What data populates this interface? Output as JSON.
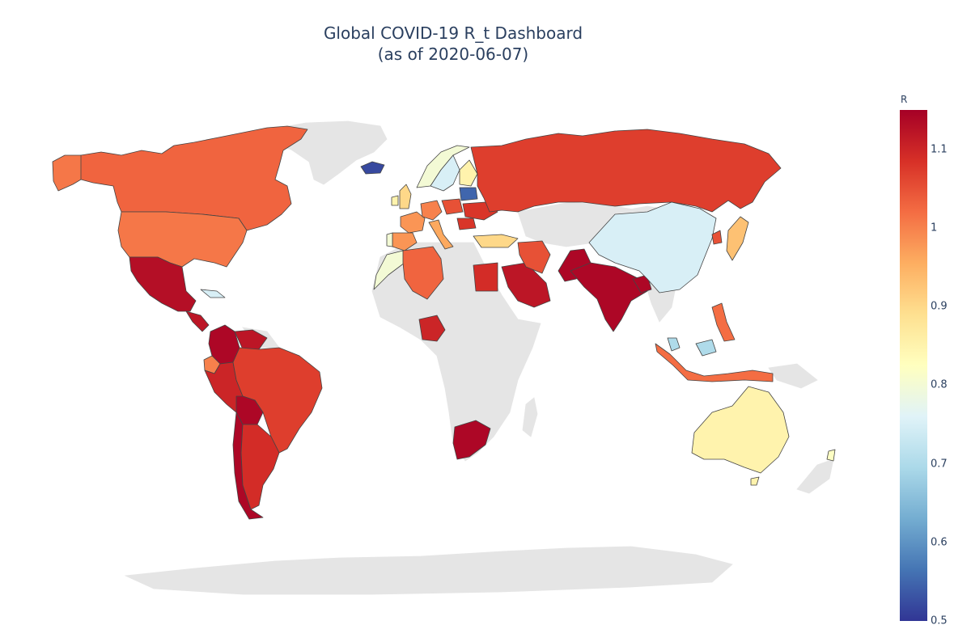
{
  "title": {
    "line1": "Global COVID-19 R_t Dashboard",
    "line2": "(as of 2020-06-07)"
  },
  "colorbar": {
    "title": "R",
    "min": 0.5,
    "max": 1.15,
    "colorscale": [
      "#313695",
      "#4575b4",
      "#74add1",
      "#abd9e9",
      "#e0f3f8",
      "#ffffbf",
      "#fee090",
      "#fdae61",
      "#f46d43",
      "#d73027",
      "#a50026"
    ],
    "ticks": [
      "1.1",
      "1",
      "0.9",
      "0.8",
      "0.7",
      "0.6",
      "0.5"
    ]
  },
  "map": {
    "no_data_color": "#e5e5e5",
    "border_color": "#444444"
  },
  "chart_data": {
    "type": "choropleth",
    "title": "Global COVID-19 R_t Dashboard (as of 2020-06-07)",
    "colorbar_title": "R",
    "range": [
      0.5,
      1.15
    ],
    "regions": [
      {
        "name": "Canada",
        "value": 1.03
      },
      {
        "name": "United States",
        "value": 1.01
      },
      {
        "name": "Mexico",
        "value": 1.13
      },
      {
        "name": "Cuba",
        "value": 0.75
      },
      {
        "name": "Guatemala",
        "value": 1.12
      },
      {
        "name": "Colombia",
        "value": 1.14
      },
      {
        "name": "Venezuela",
        "value": 1.12
      },
      {
        "name": "Ecuador",
        "value": 1.0
      },
      {
        "name": "Peru",
        "value": 1.1
      },
      {
        "name": "Bolivia",
        "value": 1.14
      },
      {
        "name": "Brazil",
        "value": 1.07
      },
      {
        "name": "Chile",
        "value": 1.14
      },
      {
        "name": "Argentina",
        "value": 1.09
      },
      {
        "name": "Iceland",
        "value": 0.52
      },
      {
        "name": "Norway",
        "value": 0.8
      },
      {
        "name": "Sweden",
        "value": 0.75
      },
      {
        "name": "Finland",
        "value": 0.85
      },
      {
        "name": "United Kingdom",
        "value": 0.9
      },
      {
        "name": "Ireland",
        "value": 0.85
      },
      {
        "name": "Portugal",
        "value": 0.8
      },
      {
        "name": "Spain",
        "value": 0.98
      },
      {
        "name": "France",
        "value": 0.98
      },
      {
        "name": "Germany",
        "value": 1.0
      },
      {
        "name": "Italy",
        "value": 0.96
      },
      {
        "name": "Poland",
        "value": 1.05
      },
      {
        "name": "Belarus",
        "value": 0.55
      },
      {
        "name": "Ukraine",
        "value": 1.08
      },
      {
        "name": "Romania",
        "value": 1.08
      },
      {
        "name": "Turkey",
        "value": 0.9
      },
      {
        "name": "Russia",
        "value": 1.07
      },
      {
        "name": "Morocco",
        "value": 0.8
      },
      {
        "name": "Algeria",
        "value": 1.03
      },
      {
        "name": "Egypt",
        "value": 1.09
      },
      {
        "name": "Saudi Arabia",
        "value": 1.12
      },
      {
        "name": "Iran",
        "value": 1.05
      },
      {
        "name": "Pakistan",
        "value": 1.14
      },
      {
        "name": "India",
        "value": 1.14
      },
      {
        "name": "Bangladesh",
        "value": 1.14
      },
      {
        "name": "China",
        "value": 0.75
      },
      {
        "name": "Japan",
        "value": 0.93
      },
      {
        "name": "South Korea",
        "value": 1.05
      },
      {
        "name": "Philippines",
        "value": 1.02
      },
      {
        "name": "Malaysia",
        "value": 0.7
      },
      {
        "name": "Indonesia",
        "value": 1.02
      },
      {
        "name": "Nigeria",
        "value": 1.1
      },
      {
        "name": "South Africa",
        "value": 1.14
      },
      {
        "name": "Australia",
        "value": 0.85
      },
      {
        "name": "New Zealand",
        "value": 0.82
      }
    ]
  }
}
